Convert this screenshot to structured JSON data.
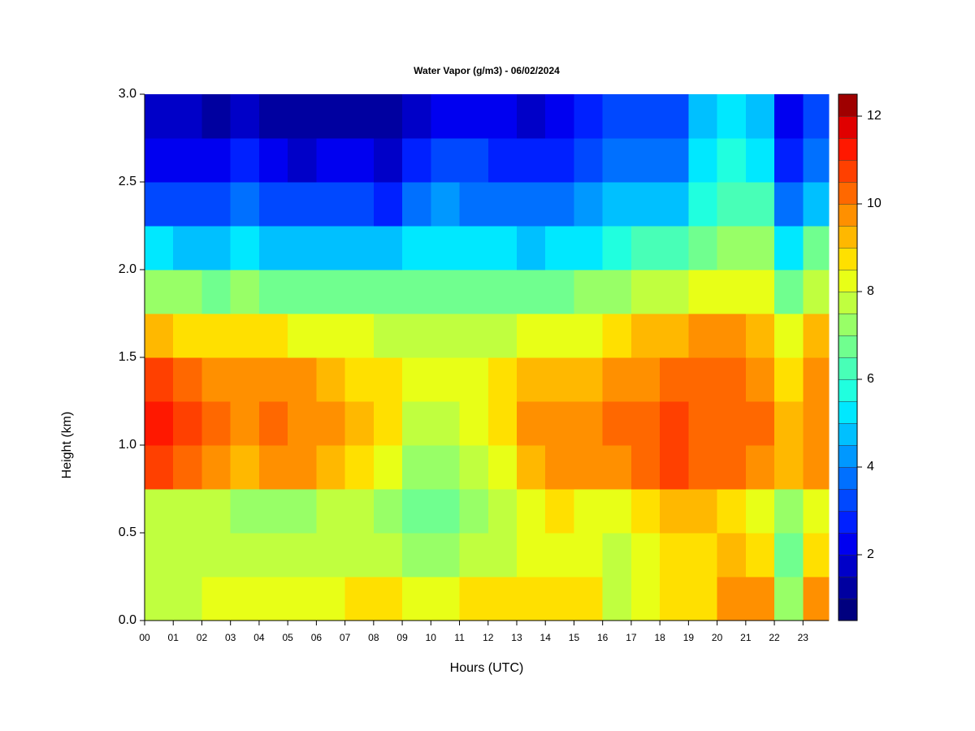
{
  "chart_data": {
    "type": "heatmap",
    "title": "Water Vapor (g/m3) - 06/02/2024",
    "x_label": "Hours (UTC)",
    "y_label": "Height (km)",
    "x": [
      0,
      1,
      2,
      3,
      4,
      5,
      6,
      7,
      8,
      9,
      10,
      11,
      12,
      13,
      14,
      15,
      16,
      17,
      18,
      19,
      20,
      21,
      22,
      23
    ],
    "y": [
      0,
      0.25,
      0.5,
      0.75,
      1,
      1.25,
      1.5,
      1.75,
      2,
      2.25,
      2.5,
      2.75
    ],
    "values": [
      [
        7.8,
        7.8,
        7.5,
        10.5,
        11,
        10.5,
        9,
        7,
        5,
        3,
        2,
        1.5
      ],
      [
        7.8,
        7.5,
        7.5,
        10,
        10.5,
        10,
        8.5,
        7,
        4.5,
        3,
        2,
        1.5
      ],
      [
        8,
        7.5,
        7.5,
        9.5,
        10,
        9.8,
        8.5,
        6.5,
        4.5,
        3,
        2,
        1.3
      ],
      [
        8,
        7.5,
        7,
        9,
        9.8,
        9.5,
        8.5,
        7,
        5,
        3.5,
        2.5,
        1.5
      ],
      [
        8,
        7.5,
        7,
        9.5,
        10,
        9.5,
        8.5,
        6.5,
        4.5,
        3,
        2,
        1.2
      ],
      [
        8,
        7.5,
        7,
        9.5,
        9.8,
        9.5,
        8,
        6.5,
        4.5,
        3,
        1.8,
        1.2
      ],
      [
        8.2,
        7.5,
        7.5,
        9,
        9.5,
        9,
        8,
        6.5,
        4.5,
        3,
        2,
        1.2
      ],
      [
        8.5,
        7.8,
        7.5,
        8.5,
        9,
        8.8,
        8,
        6.5,
        4.5,
        3,
        2,
        1.2
      ],
      [
        8.5,
        7.5,
        7,
        8,
        8.5,
        8.5,
        7.8,
        6.5,
        4.5,
        2.8,
        1.8,
        1.2
      ],
      [
        8,
        7,
        6.5,
        7,
        7.5,
        8,
        7.8,
        6.5,
        5,
        3.5,
        2.5,
        1.5
      ],
      [
        8,
        7,
        6.5,
        7,
        7.5,
        8,
        7.5,
        6.5,
        5,
        4,
        3,
        2
      ],
      [
        8.5,
        7.5,
        7,
        7.5,
        8,
        8,
        7.5,
        6.5,
        5,
        3.5,
        3,
        2
      ],
      [
        8.5,
        7.8,
        7.5,
        8,
        8.5,
        8.5,
        7.8,
        6.5,
        5,
        3.5,
        2.5,
        2
      ],
      [
        8.5,
        8,
        8,
        9,
        9.5,
        9,
        8,
        6.5,
        4.5,
        3.5,
        2.5,
        1.8
      ],
      [
        8.5,
        8,
        8.5,
        9.5,
        9.5,
        9,
        8,
        6.5,
        5,
        3.5,
        2.5,
        2
      ],
      [
        8.5,
        8,
        8,
        9.5,
        9.5,
        9,
        8,
        7,
        5,
        4,
        3,
        2.5
      ],
      [
        7.5,
        7.5,
        8,
        9.5,
        10,
        9.5,
        8.5,
        7,
        5.5,
        4.5,
        3.5,
        3
      ],
      [
        8,
        8,
        8.5,
        10,
        10,
        9.8,
        9,
        7.5,
        6,
        4.5,
        3.5,
        3
      ],
      [
        8.5,
        8.5,
        9,
        10.5,
        10.5,
        10,
        9,
        7.5,
        6,
        4.5,
        3.5,
        3
      ],
      [
        8.5,
        8.5,
        9,
        10,
        10,
        10,
        9.5,
        8,
        6.5,
        5.5,
        5,
        4.5
      ],
      [
        9.5,
        9,
        8.5,
        10,
        10,
        10,
        9.5,
        8,
        7,
        6,
        5.5,
        5
      ],
      [
        9.5,
        8.5,
        8,
        9.5,
        10,
        9.5,
        9,
        8,
        7,
        6,
        5,
        4.5
      ],
      [
        7,
        6.5,
        7,
        9,
        9,
        8.5,
        8,
        6.5,
        5,
        3.5,
        2.5,
        2
      ],
      [
        9.5,
        8.5,
        8,
        9.5,
        9.5,
        9.5,
        9,
        7.5,
        6.5,
        4.5,
        3.5,
        3
      ]
    ],
    "xlim": [
      0,
      23.9
    ],
    "ylim": [
      0,
      3
    ],
    "xticks": [
      {
        "value": 0,
        "label": "00"
      },
      {
        "value": 1,
        "label": "01"
      },
      {
        "value": 2,
        "label": "02"
      },
      {
        "value": 3,
        "label": "03"
      },
      {
        "value": 4,
        "label": "04"
      },
      {
        "value": 5,
        "label": "05"
      },
      {
        "value": 6,
        "label": "06"
      },
      {
        "value": 7,
        "label": "07"
      },
      {
        "value": 8,
        "label": "08"
      },
      {
        "value": 9,
        "label": "09"
      },
      10,
      11,
      12,
      13,
      14,
      15,
      16,
      17,
      18,
      19,
      20,
      21,
      22,
      23
    ],
    "yticks": [
      {
        "value": 0,
        "label": "0.0"
      },
      {
        "value": 0.5,
        "label": "0.5"
      },
      {
        "value": 1,
        "label": "1.0"
      },
      {
        "value": 1.5,
        "label": "1.5"
      },
      {
        "value": 2,
        "label": "2.0"
      },
      {
        "value": 2.5,
        "label": "2.5"
      },
      {
        "value": 3,
        "label": "3.0"
      }
    ],
    "levels": [
      0.5,
      1,
      1.5,
      2,
      2.5,
      3,
      3.5,
      4,
      4.5,
      5,
      5.5,
      6,
      6.5,
      7,
      7.5,
      8,
      8.5,
      9,
      9.5,
      10,
      10.5,
      11,
      11.5,
      12,
      12.5
    ],
    "colors": [
      "#00007f",
      "#0000a0",
      "#0000c8",
      "#0000f0",
      "#0020ff",
      "#0048ff",
      "#0070ff",
      "#0098ff",
      "#00c0ff",
      "#00e8ff",
      "#20ffdf",
      "#48ffb7",
      "#70ff8f",
      "#98ff67",
      "#c0ff3f",
      "#e8ff17",
      "#ffe000",
      "#ffb800",
      "#ff9000",
      "#ff6800",
      "#ff4000",
      "#ff1800",
      "#e00000",
      "#9f0000"
    ],
    "colorbar_ticks": [
      2,
      4,
      6,
      8,
      10,
      12
    ]
  }
}
